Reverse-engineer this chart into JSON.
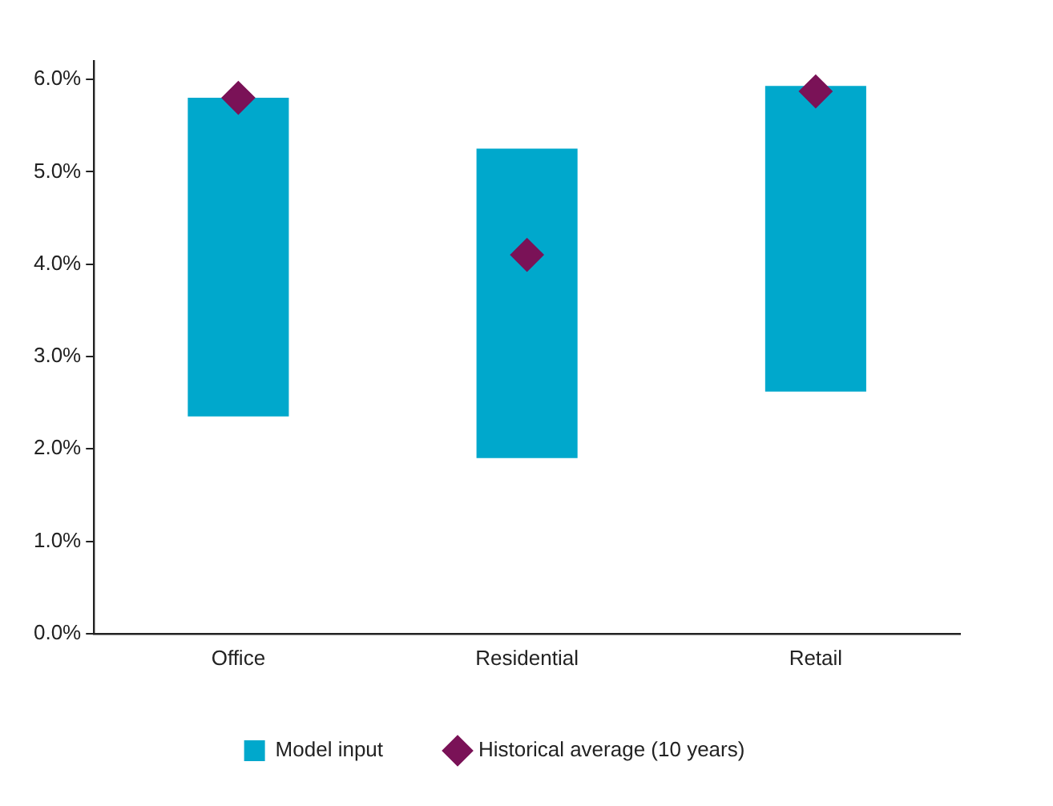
{
  "chart_data": {
    "type": "bar",
    "categories": [
      "Office",
      "Residential",
      "Retail"
    ],
    "series": [
      {
        "name": "Model input",
        "color": "#00a8cc",
        "base": [
          2.35,
          1.9,
          2.62
        ],
        "values": [
          3.45,
          3.35,
          3.31
        ]
      },
      {
        "name": "Historical average (10 years)",
        "type": "scatter",
        "color": "#7a1257",
        "marker": "diamond",
        "x": [
          "Office",
          "Residential",
          "Retail"
        ],
        "values": [
          5.8,
          4.1,
          5.87
        ]
      }
    ],
    "ylim": [
      0,
      6.2
    ],
    "yticks": [
      {
        "value": 0,
        "label": "0.0%"
      },
      {
        "value": 1,
        "label": "1.0%"
      },
      {
        "value": 2,
        "label": "2.0%"
      },
      {
        "value": 3,
        "label": "3.0%"
      },
      {
        "value": 4,
        "label": "4.0%"
      },
      {
        "value": 5,
        "label": "5.0%"
      },
      {
        "value": 6,
        "label": "6.0%"
      }
    ],
    "grid": false,
    "legend": "bottom"
  }
}
